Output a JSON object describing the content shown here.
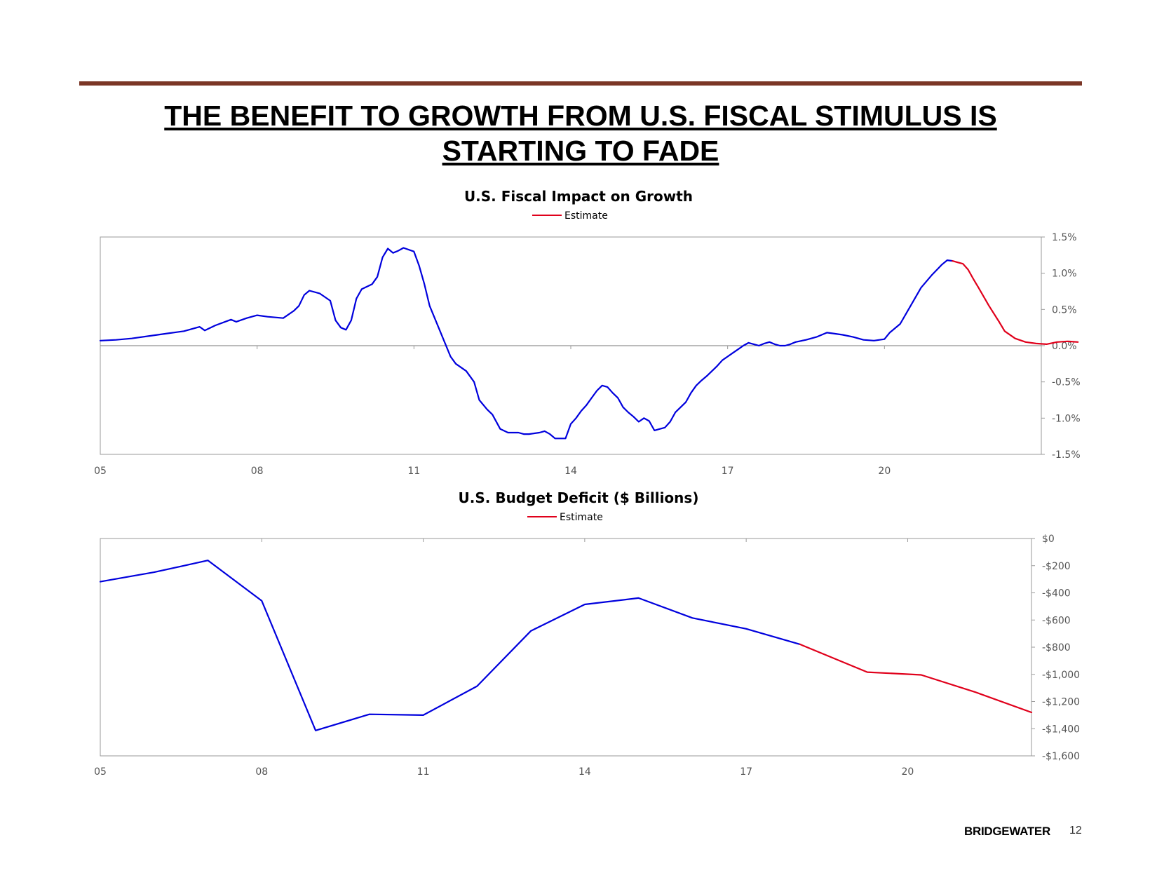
{
  "slide": {
    "title_line1": "THE BENEFIT TO GROWTH FROM U.S. FISCAL STIMULUS IS",
    "title_line2": "STARTING TO FADE",
    "rule_color": "#7b3626",
    "brand": "BRIDGEWATER",
    "page_number": "12"
  },
  "chart_data": [
    {
      "type": "line",
      "title": "U.S. Fiscal Impact on Growth",
      "legend": [
        "Estimate"
      ],
      "legend_position": "top-center",
      "x_axis": {
        "min": 2005,
        "max": 2023,
        "ticks": [
          2005,
          2008,
          2011,
          2014,
          2017,
          2020
        ],
        "tick_labels": [
          "05",
          "08",
          "11",
          "14",
          "17",
          "20"
        ]
      },
      "y_axis": {
        "position": "right",
        "min": -1.5,
        "max": 1.5,
        "ticks": [
          1.5,
          1.0,
          0.5,
          0.0,
          -0.5,
          -1.0,
          -1.5
        ],
        "tick_labels": [
          "1.5%",
          "1.0%",
          "0.5%",
          "0.0%",
          "-0.5%",
          "-1.0%",
          "-1.5%"
        ]
      },
      "grid": false,
      "zero_line": true,
      "series": [
        {
          "color": "#0000dd",
          "points": [
            [
              2005.0,
              0.07
            ],
            [
              2005.3,
              0.08
            ],
            [
              2005.6,
              0.1
            ],
            [
              2006.0,
              0.14
            ],
            [
              2006.3,
              0.17
            ],
            [
              2006.6,
              0.2
            ],
            [
              2006.9,
              0.26
            ],
            [
              2007.0,
              0.21
            ],
            [
              2007.2,
              0.28
            ],
            [
              2007.5,
              0.36
            ],
            [
              2007.6,
              0.33
            ],
            [
              2007.8,
              0.38
            ],
            [
              2008.0,
              0.42
            ],
            [
              2008.2,
              0.4
            ],
            [
              2008.5,
              0.38
            ],
            [
              2008.7,
              0.48
            ],
            [
              2008.8,
              0.55
            ],
            [
              2008.9,
              0.7
            ],
            [
              2009.0,
              0.76
            ],
            [
              2009.2,
              0.72
            ],
            [
              2009.4,
              0.62
            ],
            [
              2009.5,
              0.35
            ],
            [
              2009.6,
              0.25
            ],
            [
              2009.7,
              0.22
            ],
            [
              2009.8,
              0.35
            ],
            [
              2009.9,
              0.65
            ],
            [
              2010.0,
              0.78
            ],
            [
              2010.2,
              0.85
            ],
            [
              2010.3,
              0.95
            ],
            [
              2010.4,
              1.22
            ],
            [
              2010.5,
              1.34
            ],
            [
              2010.6,
              1.28
            ],
            [
              2010.7,
              1.31
            ],
            [
              2010.8,
              1.35
            ],
            [
              2011.0,
              1.3
            ],
            [
              2011.1,
              1.1
            ],
            [
              2011.2,
              0.85
            ],
            [
              2011.3,
              0.55
            ],
            [
              2011.5,
              0.2
            ],
            [
              2011.7,
              -0.15
            ],
            [
              2011.8,
              -0.25
            ],
            [
              2012.0,
              -0.35
            ],
            [
              2012.15,
              -0.5
            ],
            [
              2012.25,
              -0.75
            ],
            [
              2012.4,
              -0.88
            ],
            [
              2012.5,
              -0.95
            ],
            [
              2012.65,
              -1.15
            ],
            [
              2012.8,
              -1.2
            ],
            [
              2012.9,
              -1.2
            ],
            [
              2013.0,
              -1.2
            ],
            [
              2013.1,
              -1.22
            ],
            [
              2013.2,
              -1.22
            ],
            [
              2013.4,
              -1.2
            ],
            [
              2013.5,
              -1.18
            ],
            [
              2013.6,
              -1.22
            ],
            [
              2013.7,
              -1.28
            ],
            [
              2013.8,
              -1.28
            ],
            [
              2013.9,
              -1.28
            ],
            [
              2014.0,
              -1.08
            ],
            [
              2014.1,
              -1.0
            ],
            [
              2014.2,
              -0.9
            ],
            [
              2014.3,
              -0.82
            ],
            [
              2014.4,
              -0.72
            ],
            [
              2014.5,
              -0.62
            ],
            [
              2014.6,
              -0.55
            ],
            [
              2014.7,
              -0.57
            ],
            [
              2014.8,
              -0.65
            ],
            [
              2014.9,
              -0.72
            ],
            [
              2015.0,
              -0.85
            ],
            [
              2015.1,
              -0.92
            ],
            [
              2015.2,
              -0.98
            ],
            [
              2015.3,
              -1.05
            ],
            [
              2015.4,
              -1.0
            ],
            [
              2015.5,
              -1.04
            ],
            [
              2015.6,
              -1.17
            ],
            [
              2015.7,
              -1.15
            ],
            [
              2015.8,
              -1.13
            ],
            [
              2015.9,
              -1.05
            ],
            [
              2016.0,
              -0.92
            ],
            [
              2016.1,
              -0.85
            ],
            [
              2016.2,
              -0.78
            ],
            [
              2016.3,
              -0.65
            ],
            [
              2016.4,
              -0.55
            ],
            [
              2016.5,
              -0.48
            ],
            [
              2016.6,
              -0.42
            ],
            [
              2016.7,
              -0.35
            ],
            [
              2016.8,
              -0.28
            ],
            [
              2016.9,
              -0.2
            ],
            [
              2017.0,
              -0.15
            ],
            [
              2017.1,
              -0.1
            ],
            [
              2017.2,
              -0.05
            ],
            [
              2017.3,
              0.0
            ],
            [
              2017.4,
              0.04
            ],
            [
              2017.5,
              0.02
            ],
            [
              2017.6,
              0.0
            ],
            [
              2017.7,
              0.03
            ],
            [
              2017.8,
              0.05
            ],
            [
              2017.9,
              0.02
            ],
            [
              2018.0,
              0.0
            ],
            [
              2018.1,
              0.0
            ],
            [
              2018.2,
              0.02
            ],
            [
              2018.3,
              0.05
            ],
            [
              2018.5,
              0.08
            ],
            [
              2018.7,
              0.12
            ],
            [
              2018.9,
              0.18
            ],
            [
              2019.0,
              0.17
            ],
            [
              2019.2,
              0.15
            ],
            [
              2019.4,
              0.12
            ],
            [
              2019.6,
              0.08
            ],
            [
              2019.8,
              0.07
            ],
            [
              2020.0,
              0.09
            ],
            [
              2020.1,
              0.18
            ],
            [
              2020.3,
              0.3
            ],
            [
              2020.5,
              0.55
            ],
            [
              2020.7,
              0.8
            ],
            [
              2020.9,
              0.97
            ],
            [
              2021.1,
              1.12
            ],
            [
              2021.2,
              1.18
            ],
            [
              2021.3,
              1.17
            ]
          ]
        },
        {
          "name": "Estimate",
          "color": "#e0001b",
          "points": [
            [
              2021.3,
              1.17
            ],
            [
              2021.4,
              1.15
            ],
            [
              2021.5,
              1.13
            ],
            [
              2021.6,
              1.05
            ],
            [
              2021.7,
              0.92
            ],
            [
              2021.8,
              0.8
            ],
            [
              2022.0,
              0.55
            ],
            [
              2022.2,
              0.32
            ],
            [
              2022.3,
              0.2
            ],
            [
              2022.5,
              0.1
            ],
            [
              2022.7,
              0.05
            ],
            [
              2022.9,
              0.03
            ],
            [
              2023.1,
              0.02
            ],
            [
              2023.3,
              0.05
            ],
            [
              2023.5,
              0.06
            ],
            [
              2023.7,
              0.05
            ]
          ]
        }
      ]
    },
    {
      "type": "line",
      "title": "U.S. Budget Deficit ($ Billions)",
      "legend": [
        "Estimate"
      ],
      "legend_position": "top-center",
      "x_axis": {
        "min": 2005,
        "max": 2022.3,
        "ticks": [
          2005,
          2008,
          2011,
          2014,
          2017,
          2020
        ],
        "tick_labels": [
          "05",
          "08",
          "11",
          "14",
          "17",
          "20"
        ]
      },
      "y_axis": {
        "position": "right",
        "min": -1600,
        "max": 0,
        "ticks": [
          0,
          -200,
          -400,
          -600,
          -800,
          -1000,
          -1200,
          -1400,
          -1600
        ],
        "tick_labels": [
          "$0",
          "-$200",
          "-$400",
          "-$600",
          "-$800",
          "-$1,000",
          "-$1,200",
          "-$1,400",
          "-$1,600"
        ]
      },
      "grid": false,
      "series": [
        {
          "color": "#0000dd",
          "points": [
            [
              2005.0,
              -318
            ],
            [
              2006.0,
              -248
            ],
            [
              2007.0,
              -161
            ],
            [
              2008.0,
              -459
            ],
            [
              2009.0,
              -1413
            ],
            [
              2010.0,
              -1294
            ],
            [
              2011.0,
              -1300
            ],
            [
              2012.0,
              -1087
            ],
            [
              2013.0,
              -680
            ],
            [
              2014.0,
              -485
            ],
            [
              2015.0,
              -438
            ],
            [
              2016.0,
              -585
            ],
            [
              2017.0,
              -665
            ],
            [
              2018.0,
              -779
            ]
          ]
        },
        {
          "name": "Estimate",
          "color": "#e0001b",
          "points": [
            [
              2018.0,
              -779
            ],
            [
              2019.25,
              -984
            ],
            [
              2020.25,
              -1004
            ],
            [
              2021.25,
              -1130
            ],
            [
              2022.3,
              -1280
            ]
          ]
        }
      ]
    }
  ]
}
